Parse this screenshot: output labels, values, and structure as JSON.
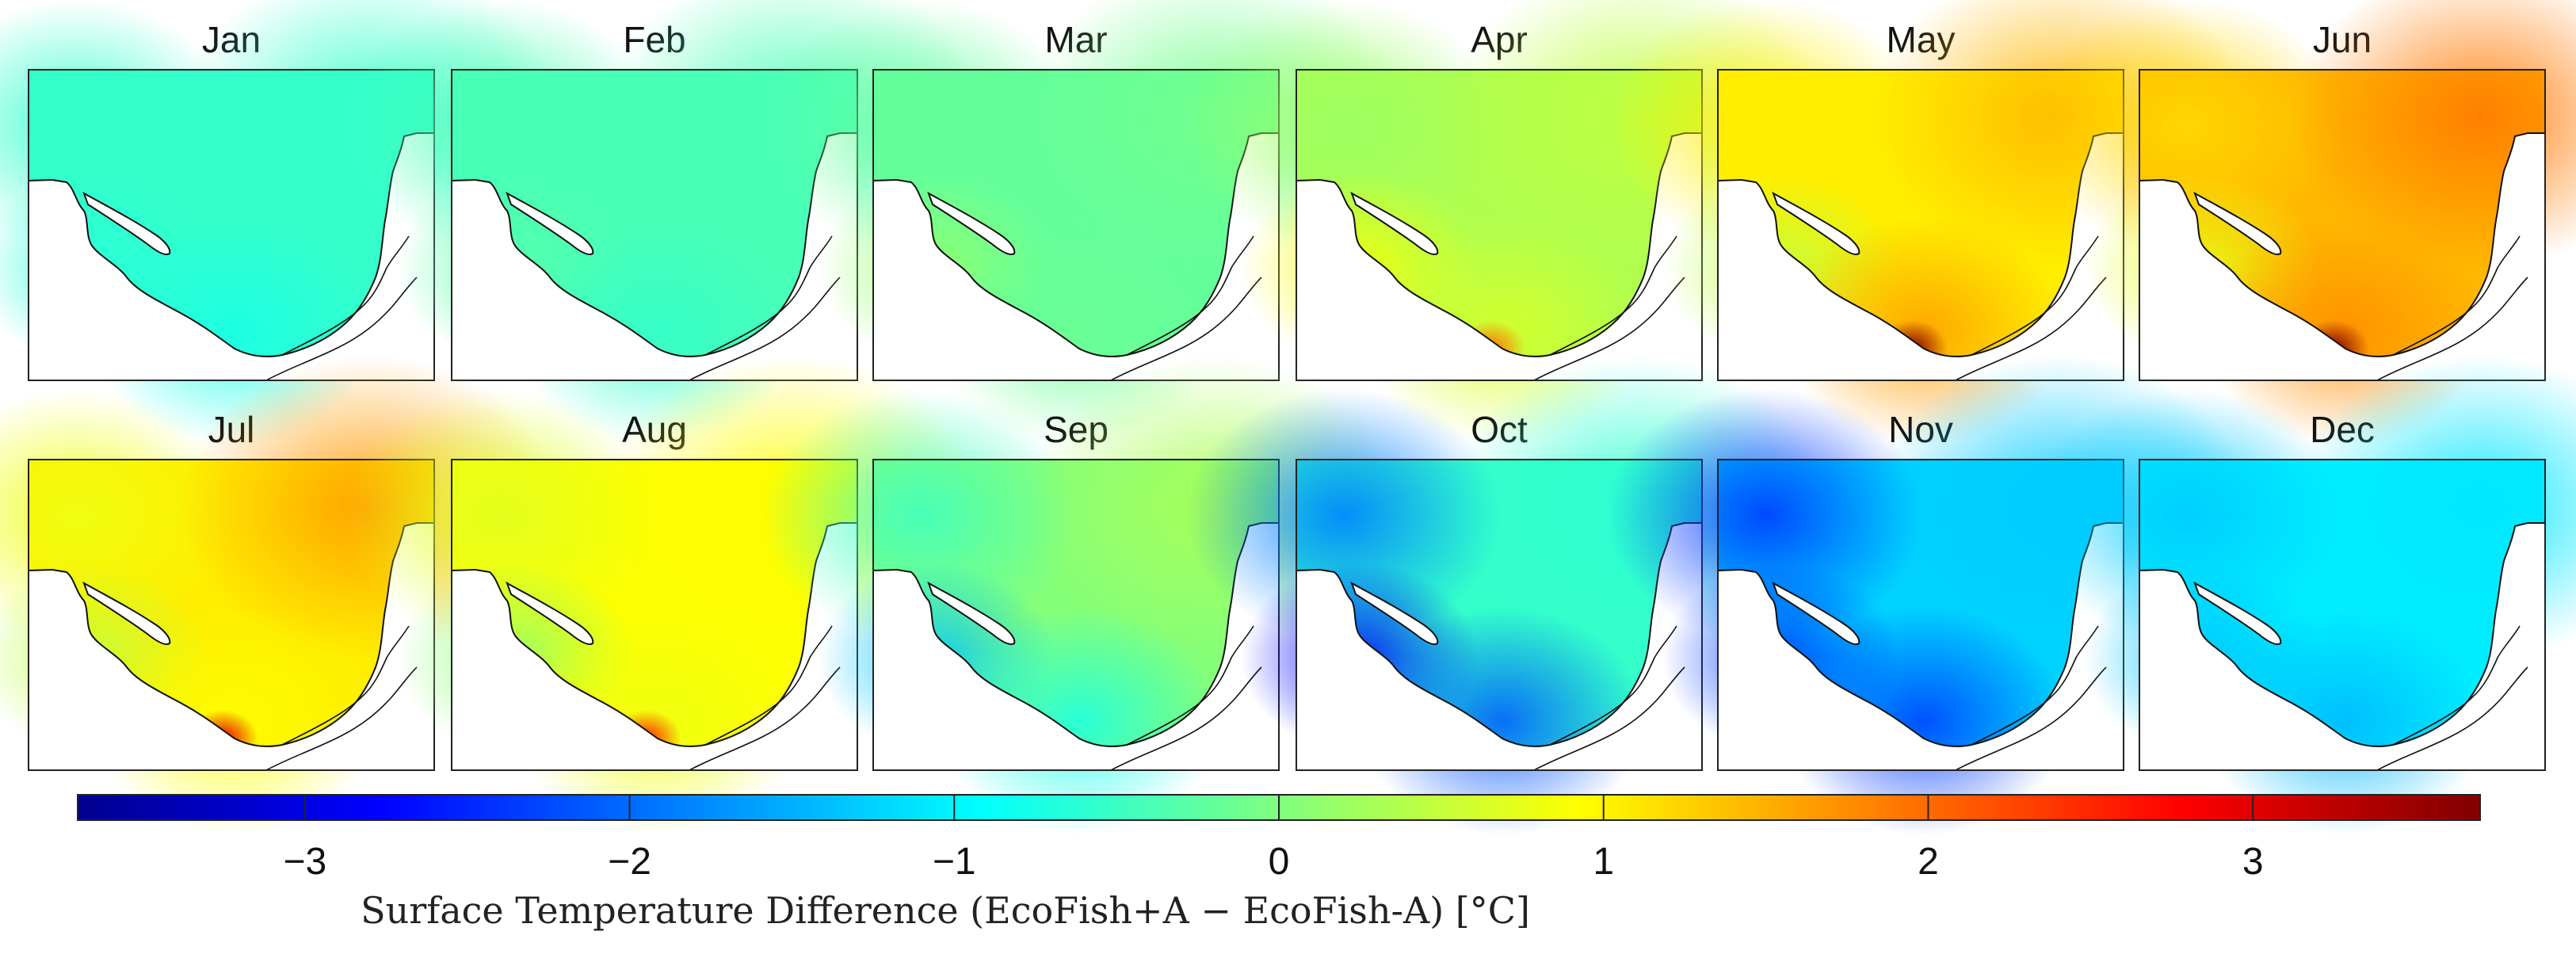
{
  "figure": {
    "colorbar_label": "Surface Temperature Difference (EcoFish+A − EcoFish-A) [°C]",
    "colorbar_range": [
      -3.7,
      3.7
    ],
    "colorbar_ticks": [
      {
        "value": -3,
        "label": "−3"
      },
      {
        "value": -2,
        "label": "−2"
      },
      {
        "value": -1,
        "label": "−1"
      },
      {
        "value": 0,
        "label": "0"
      },
      {
        "value": 1,
        "label": "1"
      },
      {
        "value": 2,
        "label": "2"
      },
      {
        "value": 3,
        "label": "3"
      }
    ],
    "colormap": [
      "#00008f",
      "#0000ff",
      "#00ffff",
      "#ffff00",
      "#ff0000",
      "#800000"
    ]
  },
  "panels": [
    {
      "title": "Jan",
      "base": -0.55,
      "nw": 0,
      "ne": 0,
      "sw": -0.1,
      "south": -0.2,
      "spot": 0
    },
    {
      "title": "Feb",
      "base": -0.4,
      "nw": 0,
      "ne": 0,
      "sw": 0.1,
      "south": -0.15,
      "spot": 0
    },
    {
      "title": "Mar",
      "base": -0.2,
      "nw": 0,
      "ne": 0.1,
      "sw": 0.35,
      "south": 0.05,
      "spot": 0
    },
    {
      "title": "Apr",
      "base": 0.35,
      "nw": -0.15,
      "ne": 0.1,
      "sw": 0.5,
      "south": 0.3,
      "spot": 1.6
    },
    {
      "title": "May",
      "base": 1.05,
      "nw": 0.0,
      "ne": 0.4,
      "sw": -0.6,
      "south": 0.6,
      "spot": 2.7
    },
    {
      "title": "Jun",
      "base": 1.45,
      "nw": -0.25,
      "ne": 0.45,
      "sw": -0.7,
      "south": 0.3,
      "spot": 2.5
    },
    {
      "title": "Jul",
      "base": 1.05,
      "nw": -0.25,
      "ne": 0.6,
      "sw": -0.6,
      "south": -0.15,
      "spot": 1.9
    },
    {
      "title": "Aug",
      "base": 0.9,
      "nw": -0.2,
      "ne": 0.05,
      "sw": -0.8,
      "south": -0.1,
      "spot": 1.6
    },
    {
      "title": "Sep",
      "base": 0.05,
      "nw": -0.5,
      "ne": 0.25,
      "sw": -1.4,
      "south": -0.8,
      "spot": 0
    },
    {
      "title": "Oct",
      "base": -0.55,
      "nw": -1.3,
      "ne": -0.05,
      "sw": -2.2,
      "south": -1.6,
      "spot": 0
    },
    {
      "title": "Nov",
      "base": -1.25,
      "nw": -1.1,
      "ne": -0.05,
      "sw": -1.1,
      "south": -1.1,
      "spot": 0
    },
    {
      "title": "Dec",
      "base": -1.05,
      "nw": -0.25,
      "ne": -0.05,
      "sw": -0.3,
      "south": -0.4,
      "spot": 0
    }
  ]
}
